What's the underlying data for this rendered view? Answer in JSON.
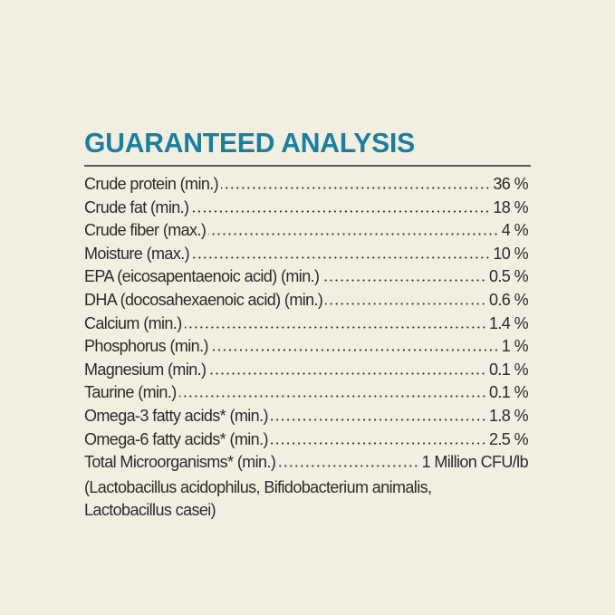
{
  "title": "GUARANTEED ANALYSIS",
  "rows": [
    {
      "label": "Crude protein (min.)",
      "value": "36 %"
    },
    {
      "label": "Crude fat (min.)",
      "value": "18 %"
    },
    {
      "label": "Crude fiber (max.)",
      "value": "4 %"
    },
    {
      "label": "Moisture (max.)",
      "value": "10 %"
    },
    {
      "label": "EPA (eicosapentaenoic acid) (min.)",
      "value": "0.5 %"
    },
    {
      "label": "DHA (docosahexaenoic acid) (min.)",
      "value": "0.6 %"
    },
    {
      "label": "Calcium (min.)",
      "value": "1.4 %"
    },
    {
      "label": "Phosphorus (min.)",
      "value": "1 %"
    },
    {
      "label": "Magnesium (min.)",
      "value": "0.1 %"
    },
    {
      "label": "Taurine (min.)",
      "value": "0.1 %"
    },
    {
      "label": "Omega-3 fatty acids* (min.)",
      "value": "1.8 %"
    },
    {
      "label": "Omega-6 fatty acids* (min.)",
      "value": "2.5 %"
    },
    {
      "label": "Total Microorganisms* (min.)",
      "value": "1 Million CFU/lb"
    }
  ],
  "note_line1": "(Lactobacillus acidophilus, Bifidobacterium animalis,",
  "note_line2": "Lactobacillus casei)",
  "colors": {
    "background": "#f3efe0",
    "title": "#1a7fa0",
    "text": "#2a2a28"
  }
}
